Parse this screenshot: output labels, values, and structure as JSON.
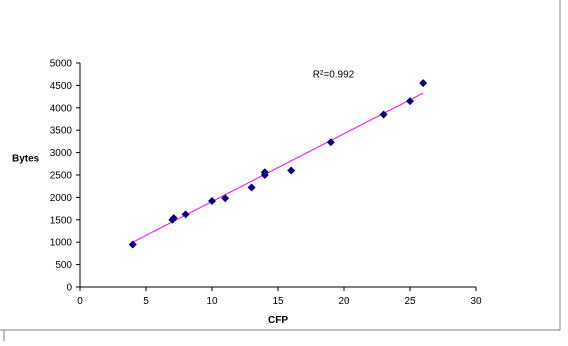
{
  "chart_data": {
    "type": "scatter",
    "xlabel": "CFP",
    "ylabel": "Bytes",
    "xlim": [
      0,
      30
    ],
    "ylim": [
      0,
      5000
    ],
    "x_ticks": [
      0,
      5,
      10,
      15,
      20,
      25,
      30
    ],
    "y_ticks": [
      0,
      500,
      1000,
      1500,
      2000,
      2500,
      3000,
      3500,
      4000,
      4500,
      5000
    ],
    "grid": false,
    "legend": "none",
    "series": [
      {
        "points": [
          {
            "x": 4,
            "y": 950
          },
          {
            "x": 7,
            "y": 1500
          },
          {
            "x": 7.1,
            "y": 1540
          },
          {
            "x": 8,
            "y": 1620
          },
          {
            "x": 10,
            "y": 1920
          },
          {
            "x": 11,
            "y": 1980
          },
          {
            "x": 13,
            "y": 2220
          },
          {
            "x": 14,
            "y": 2500
          },
          {
            "x": 14,
            "y": 2560
          },
          {
            "x": 16,
            "y": 2600
          },
          {
            "x": 19,
            "y": 3230
          },
          {
            "x": 23,
            "y": 3850
          },
          {
            "x": 25,
            "y": 4150
          },
          {
            "x": 26,
            "y": 4550
          }
        ],
        "marker_color": "#000080",
        "marker": "diamond"
      }
    ],
    "trendline": {
      "type": "linear",
      "from": {
        "x": 4,
        "y": 1000
      },
      "to": {
        "x": 26,
        "y": 4330
      },
      "color": "#ff00ff"
    },
    "annotations": [
      {
        "text": "R²=0.992",
        "x": 19,
        "y": 4680
      }
    ],
    "colors": {
      "axis": "#000000",
      "frame": "#808080"
    }
  }
}
